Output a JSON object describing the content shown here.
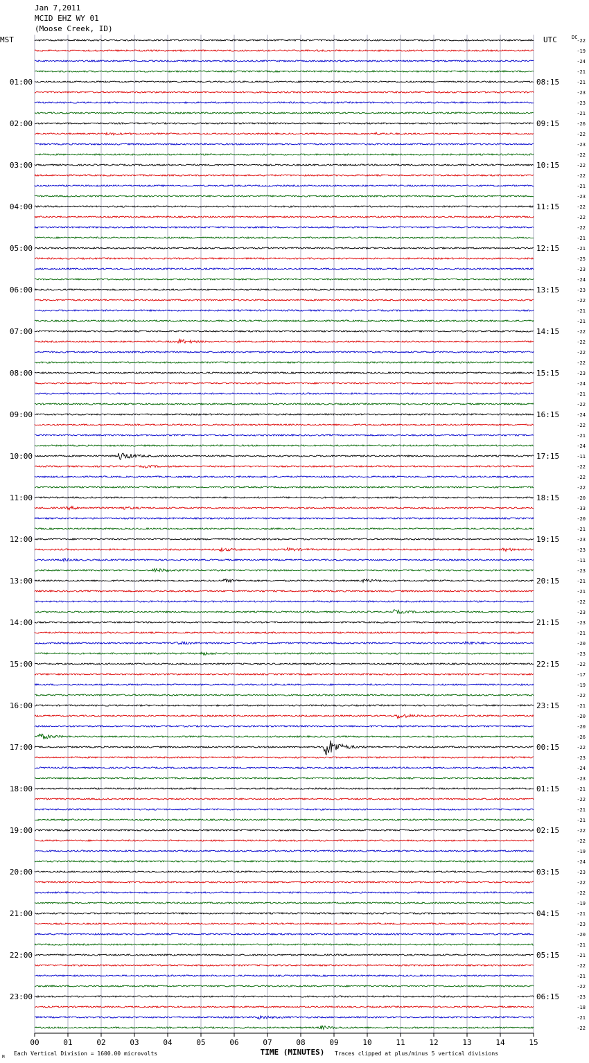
{
  "header": {
    "date": "Jan 7,2011",
    "station": "MCID EHZ WY 01",
    "location": "(Moose Creek, ID)"
  },
  "axis": {
    "left_tz": "MST",
    "right_tz": "UTC",
    "dc_label": "DC",
    "xlabel": "TIME (MINUTES)",
    "scale_note": "Each Vertical Division = 1600.00 microvolts",
    "clip_note": "Traces clipped at plus/minus 5 vertical divisions",
    "corner_mark": "M"
  },
  "chart_data": {
    "type": "line",
    "title": "",
    "xlim": [
      0,
      15
    ],
    "x_ticks": [
      "00",
      "01",
      "02",
      "03",
      "04",
      "05",
      "06",
      "07",
      "08",
      "09",
      "10",
      "11",
      "12",
      "13",
      "14",
      "15"
    ],
    "trace_colors": [
      "#000000",
      "#dd0000",
      "#0000cc",
      "#006600"
    ],
    "rows_per_hour": 4,
    "mst_labels": [
      "",
      "01:00",
      "02:00",
      "03:00",
      "04:00",
      "05:00",
      "06:00",
      "07:00",
      "08:00",
      "09:00",
      "10:00",
      "11:00",
      "12:00",
      "13:00",
      "14:00",
      "15:00",
      "16:00",
      "17:00",
      "18:00",
      "19:00",
      "20:00",
      "21:00",
      "22:00",
      "23:00"
    ],
    "utc_labels": [
      "",
      "08:15",
      "09:15",
      "10:15",
      "11:15",
      "12:15",
      "13:15",
      "14:15",
      "15:15",
      "16:15",
      "17:15",
      "18:15",
      "19:15",
      "20:15",
      "21:15",
      "22:15",
      "23:15",
      "00:15",
      "01:15",
      "02:15",
      "03:15",
      "04:15",
      "05:15",
      "06:15"
    ],
    "dc_offsets": [
      -22,
      -19,
      -24,
      -21,
      -21,
      -23,
      -23,
      -21,
      -26,
      -22,
      -23,
      -22,
      -22,
      -22,
      -21,
      -23,
      -22,
      -22,
      -22,
      -21,
      -21,
      -25,
      -23,
      -24,
      -23,
      -22,
      -21,
      -21,
      -22,
      -22,
      -22,
      -22,
      -23,
      -24,
      -21,
      -22,
      -24,
      -22,
      -21,
      -24,
      -11,
      -22,
      -22,
      -22,
      -20,
      -33,
      -20,
      -21,
      -23,
      -23,
      -11,
      -23,
      -21,
      -21,
      -22,
      -23,
      -23,
      -21,
      -20,
      -23,
      -22,
      -17,
      -19,
      -22,
      -21,
      -20,
      -20,
      -26,
      -22,
      -23,
      -24,
      -23,
      -21,
      -22,
      -21,
      -21,
      -22,
      -22,
      -19,
      -24,
      -23,
      -22,
      -22,
      -19,
      -21,
      -23,
      -20,
      -21,
      -21,
      -22,
      -21,
      -22,
      -23,
      -18,
      -21,
      -22
    ],
    "events": [
      {
        "row": 9,
        "minute": 2.2,
        "amp": 1.5
      },
      {
        "row": 9,
        "minute": 10.2,
        "amp": 1.4
      },
      {
        "row": 29,
        "minute": 4.35,
        "amp": 3.0
      },
      {
        "row": 40,
        "minute": 2.55,
        "amp": 6.0
      },
      {
        "row": 41,
        "minute": 3.3,
        "amp": 1.3
      },
      {
        "row": 45,
        "minute": 1.0,
        "amp": 1.8
      },
      {
        "row": 45,
        "minute": 2.6,
        "amp": 1.6
      },
      {
        "row": 49,
        "minute": 5.6,
        "amp": 2.0
      },
      {
        "row": 49,
        "minute": 7.6,
        "amp": 1.8
      },
      {
        "row": 49,
        "minute": 14.1,
        "amp": 2.0
      },
      {
        "row": 50,
        "minute": 0.8,
        "amp": 1.6
      },
      {
        "row": 51,
        "minute": 3.6,
        "amp": 2.4
      },
      {
        "row": 52,
        "minute": 5.7,
        "amp": 1.8
      },
      {
        "row": 52,
        "minute": 9.9,
        "amp": 1.8
      },
      {
        "row": 55,
        "minute": 10.8,
        "amp": 2.4
      },
      {
        "row": 58,
        "minute": 4.3,
        "amp": 1.6
      },
      {
        "row": 58,
        "minute": 12.9,
        "amp": 2.4
      },
      {
        "row": 59,
        "minute": 5.0,
        "amp": 1.8
      },
      {
        "row": 65,
        "minute": 10.9,
        "amp": 3.5
      },
      {
        "row": 67,
        "minute": 0.15,
        "amp": 4.0
      },
      {
        "row": 68,
        "minute": 8.75,
        "amp": 15.0
      },
      {
        "row": 94,
        "minute": 6.75,
        "amp": 2.2
      },
      {
        "row": 95,
        "minute": 8.6,
        "amp": 2.2
      }
    ]
  }
}
